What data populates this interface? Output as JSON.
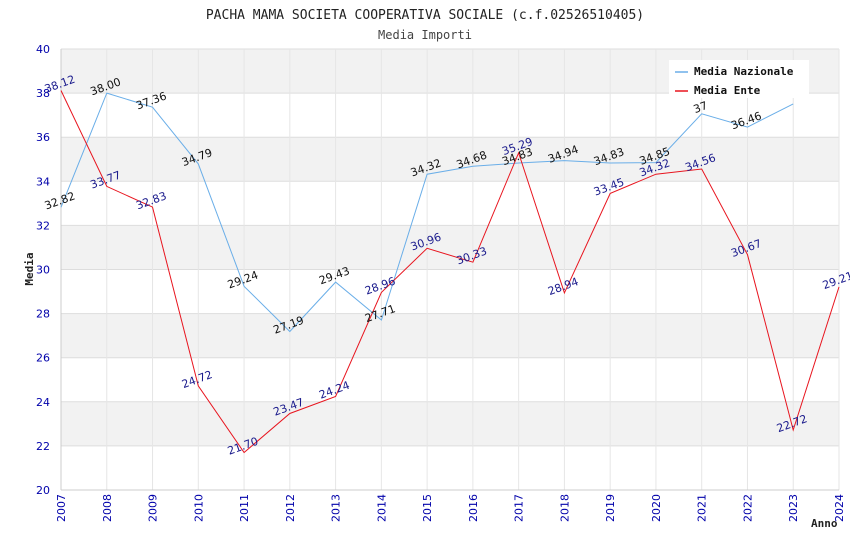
{
  "chart_data": {
    "type": "line",
    "title": "PACHA MAMA SOCIETA COOPERATIVA SOCIALE (c.f.02526510405)",
    "subtitle": "Media Importi",
    "xlabel": "Anno",
    "ylabel": "Media",
    "ylim": [
      20,
      40
    ],
    "yticks": [
      "20",
      "22",
      "24",
      "26",
      "28",
      "30",
      "32",
      "34",
      "36",
      "38",
      "40"
    ],
    "grid": true,
    "legend_position": "top-right",
    "categories": [
      "2007",
      "2008",
      "2009",
      "2010",
      "2011",
      "2012",
      "2013",
      "2014",
      "2015",
      "2016",
      "2017",
      "2018",
      "2019",
      "2020",
      "2021",
      "2022",
      "2023",
      "2024"
    ],
    "series": [
      {
        "name": "Media Nazionale",
        "color": "#6aaee8",
        "values": [
          32.82,
          38.0,
          37.36,
          34.79,
          29.24,
          27.19,
          29.43,
          27.71,
          34.32,
          34.68,
          34.83,
          34.94,
          34.83,
          34.85,
          37.06,
          36.46,
          37.51,
          null
        ],
        "labels": [
          "32.82",
          "38.00",
          "37.36",
          "34.79",
          "29.24",
          "27.19",
          "29.43",
          "27.71",
          "34.32",
          "34.68",
          "34.83",
          "34.94",
          "34.83",
          "34.85",
          "37",
          "36.46",
          "",
          ""
        ]
      },
      {
        "name": "Media Ente",
        "color": "#e8141e",
        "values": [
          38.12,
          33.77,
          32.83,
          24.72,
          21.7,
          23.47,
          24.24,
          28.96,
          30.96,
          30.33,
          35.29,
          28.94,
          33.45,
          34.32,
          34.56,
          30.67,
          22.72,
          29.21
        ],
        "labels": [
          "38.12",
          "33.77",
          "32.83",
          "24.72",
          "21.70",
          "23.47",
          "24.24",
          "28.96",
          "30.96",
          "30.33",
          "35.29",
          "28.94",
          "33.45",
          "34.32",
          "34.56",
          "30.67",
          "22.72",
          "29.21"
        ]
      }
    ]
  }
}
